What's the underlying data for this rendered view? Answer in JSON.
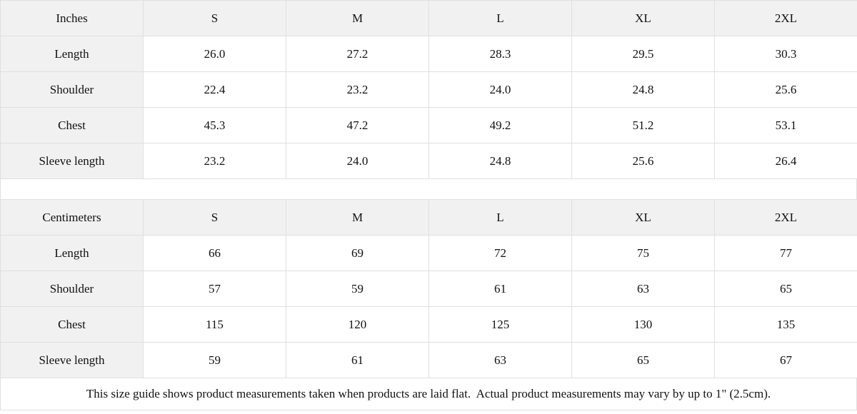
{
  "theme": {
    "header_background": "#f1f1f1",
    "cell_background": "#ffffff",
    "border_color": "#e0e0e0",
    "text_color": "#111111"
  },
  "size_guide": {
    "tables": [
      {
        "unit_label": "Inches",
        "columns": [
          "S",
          "M",
          "L",
          "XL",
          "2XL"
        ],
        "rows": [
          {
            "label": "Length",
            "values": [
              "26.0",
              "27.2",
              "28.3",
              "29.5",
              "30.3"
            ]
          },
          {
            "label": "Shoulder",
            "values": [
              "22.4",
              "23.2",
              "24.0",
              "24.8",
              "25.6"
            ]
          },
          {
            "label": "Chest",
            "values": [
              "45.3",
              "47.2",
              "49.2",
              "51.2",
              "53.1"
            ]
          },
          {
            "label": "Sleeve length",
            "values": [
              "23.2",
              "24.0",
              "24.8",
              "25.6",
              "26.4"
            ]
          }
        ]
      },
      {
        "unit_label": "Centimeters",
        "columns": [
          "S",
          "M",
          "L",
          "XL",
          "2XL"
        ],
        "rows": [
          {
            "label": "Length",
            "values": [
              "66",
              "69",
              "72",
              "75",
              "77"
            ]
          },
          {
            "label": "Shoulder",
            "values": [
              "57",
              "59",
              "61",
              "63",
              "65"
            ]
          },
          {
            "label": "Chest",
            "values": [
              "115",
              "120",
              "125",
              "130",
              "135"
            ]
          },
          {
            "label": "Sleeve length",
            "values": [
              "59",
              "61",
              "63",
              "65",
              "67"
            ]
          }
        ]
      }
    ],
    "footnote": "This size guide shows product measurements taken when products are laid flat.  Actual product measurements may vary by up to 1\" (2.5cm)."
  }
}
